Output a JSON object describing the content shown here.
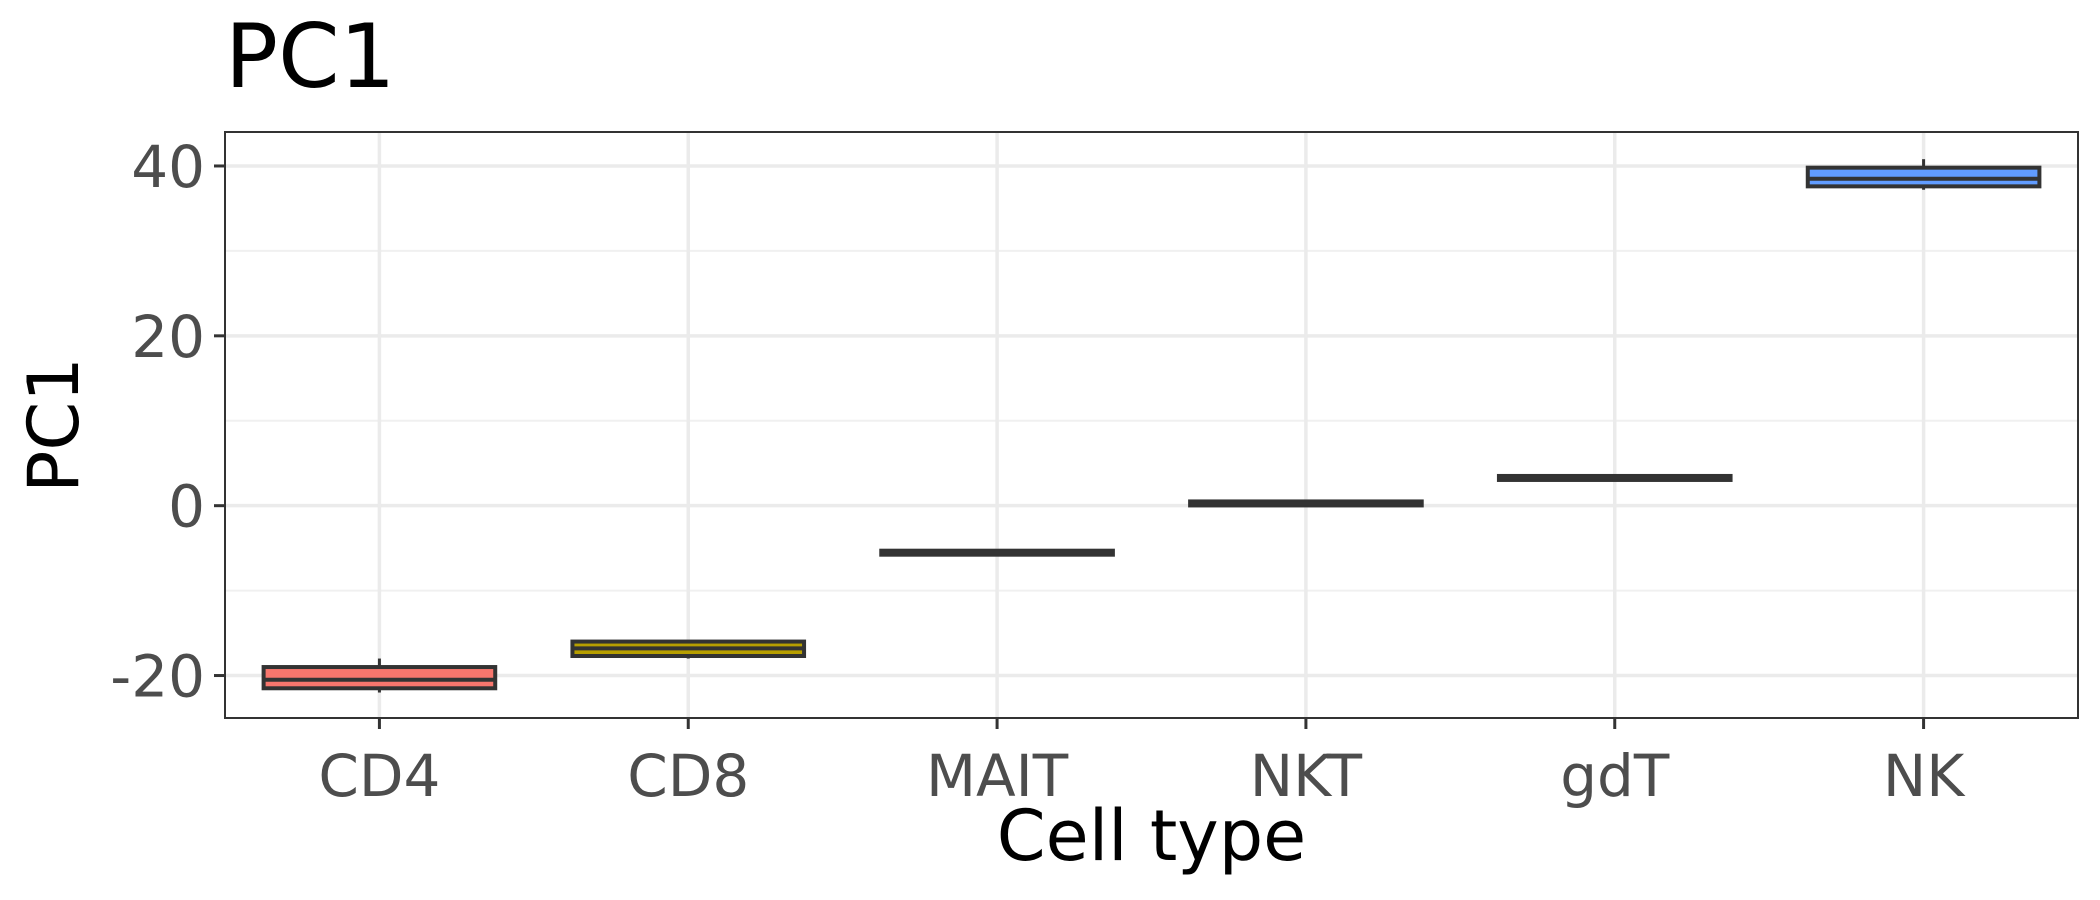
{
  "chart_data": {
    "type": "box",
    "title": "PC1",
    "xlabel": "Cell type",
    "ylabel": "PC1",
    "categories": [
      "CD4",
      "CD8",
      "MAIT",
      "NKT",
      "gdT",
      "NK"
    ],
    "ylim": [
      -25,
      44
    ],
    "yticks": [
      -20,
      0,
      20,
      40
    ],
    "ytick_labels": [
      "-20",
      "0",
      "20",
      "40"
    ],
    "grid": true,
    "legend": "none",
    "boxes": [
      {
        "category": "CD4",
        "whisker_low": -22.0,
        "q1": -21.5,
        "median": -20.5,
        "q3": -19.0,
        "whisker_high": -18.0,
        "fill": "#F8766D"
      },
      {
        "category": "CD8",
        "whisker_low": -18.0,
        "q1": -17.7,
        "median": -16.8,
        "q3": -16.0,
        "whisker_high": -15.9,
        "fill": "#B79F00"
      },
      {
        "category": "MAIT",
        "whisker_low": -5.8,
        "q1": -5.7,
        "median": -5.5,
        "q3": -5.3,
        "whisker_high": -5.1,
        "fill": "#00BA38"
      },
      {
        "category": "NKT",
        "whisker_low": 0.1,
        "q1": 0.2,
        "median": 0.3,
        "q3": 0.5,
        "whisker_high": 0.6,
        "fill": "#00BFC4"
      },
      {
        "category": "gdT",
        "whisker_low": 3.0,
        "q1": 3.1,
        "median": 3.3,
        "q3": 3.5,
        "whisker_high": 3.7,
        "fill": "#B79F00"
      },
      {
        "category": "NK",
        "whisker_low": 37.2,
        "q1": 37.6,
        "median": 38.5,
        "q3": 39.8,
        "whisker_high": 40.8,
        "fill": "#619CFF"
      }
    ]
  }
}
